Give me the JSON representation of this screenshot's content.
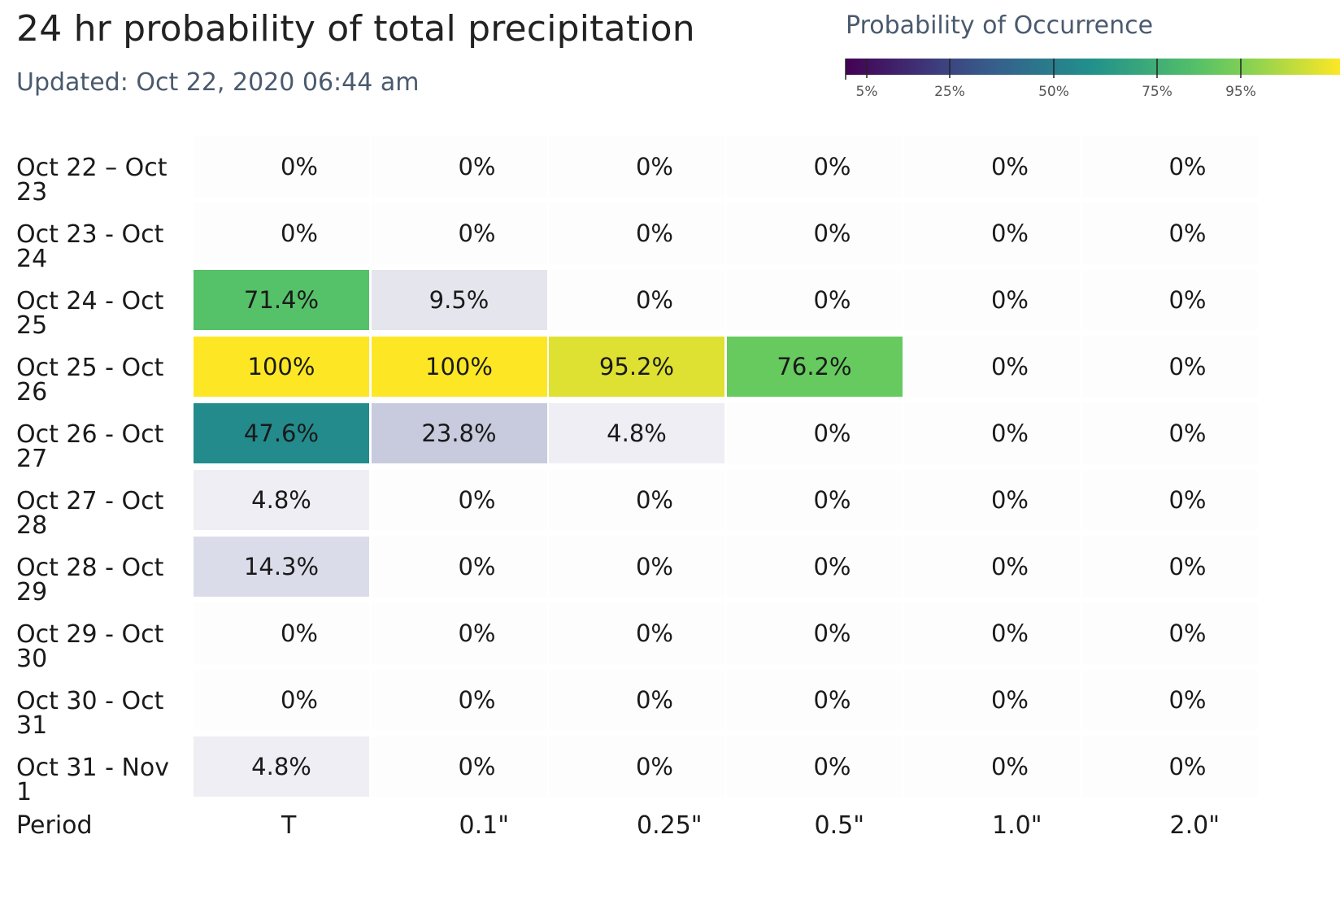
{
  "title": "24 hr probability of total precipitation",
  "subtitle": "Updated: Oct 22, 2020 06:44 am",
  "legend": {
    "title": "Probability of Occurrence",
    "ticks": [
      "5%",
      "25%",
      "50%",
      "75%",
      "95%"
    ],
    "tick_values": [
      5,
      25,
      50,
      75,
      95
    ]
  },
  "chart_data": {
    "type": "heatmap",
    "title": "24 hr probability of total precipitation",
    "x_axis_title": "Period",
    "columns": [
      "T",
      "0.1\"",
      "0.25\"",
      "0.5\"",
      "1.0\"",
      "2.0\""
    ],
    "rows": [
      {
        "label": "Oct 22 – Oct 23",
        "values": [
          0,
          0,
          0,
          0,
          0,
          0
        ],
        "labels": [
          "0%",
          "0%",
          "0%",
          "0%",
          "0%",
          "0%"
        ]
      },
      {
        "label": "Oct 23 - Oct 24",
        "values": [
          0,
          0,
          0,
          0,
          0,
          0
        ],
        "labels": [
          "0%",
          "0%",
          "0%",
          "0%",
          "0%",
          "0%"
        ]
      },
      {
        "label": "Oct 24 - Oct 25",
        "values": [
          71.4,
          9.5,
          0,
          0,
          0,
          0
        ],
        "labels": [
          "71.4%",
          "9.5%",
          "0%",
          "0%",
          "0%",
          "0%"
        ]
      },
      {
        "label": "Oct 25 - Oct 26",
        "values": [
          100,
          100,
          95.2,
          76.2,
          0,
          0
        ],
        "labels": [
          "100%",
          "100%",
          "95.2%",
          "76.2%",
          "0%",
          "0%"
        ]
      },
      {
        "label": "Oct 26 - Oct 27",
        "values": [
          47.6,
          23.8,
          4.8,
          0,
          0,
          0
        ],
        "labels": [
          "47.6%",
          "23.8%",
          "4.8%",
          "0%",
          "0%",
          "0%"
        ]
      },
      {
        "label": "Oct 27 - Oct 28",
        "values": [
          4.8,
          0,
          0,
          0,
          0,
          0
        ],
        "labels": [
          "4.8%",
          "0%",
          "0%",
          "0%",
          "0%",
          "0%"
        ]
      },
      {
        "label": "Oct 28 - Oct 29",
        "values": [
          14.3,
          0,
          0,
          0,
          0,
          0
        ],
        "labels": [
          "14.3%",
          "0%",
          "0%",
          "0%",
          "0%",
          "0%"
        ]
      },
      {
        "label": "Oct 29 - Oct 30",
        "values": [
          0,
          0,
          0,
          0,
          0,
          0
        ],
        "labels": [
          "0%",
          "0%",
          "0%",
          "0%",
          "0%",
          "0%"
        ]
      },
      {
        "label": "Oct 30 - Oct 31",
        "values": [
          0,
          0,
          0,
          0,
          0,
          0
        ],
        "labels": [
          "0%",
          "0%",
          "0%",
          "0%",
          "0%",
          "0%"
        ]
      },
      {
        "label": "Oct 31 - Nov 1",
        "values": [
          4.8,
          0,
          0,
          0,
          0,
          0
        ],
        "labels": [
          "4.8%",
          "0%",
          "0%",
          "0%",
          "0%",
          "0%"
        ]
      }
    ],
    "colorscale": "viridis"
  }
}
